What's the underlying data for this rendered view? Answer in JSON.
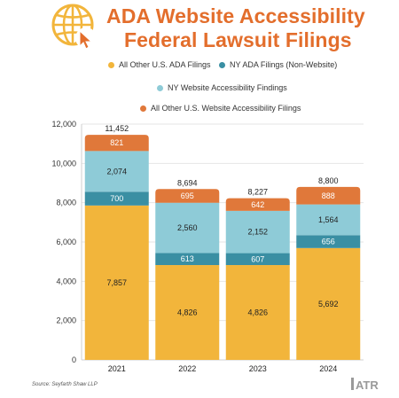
{
  "header": {
    "title_line1": "ADA Website Accessibility",
    "title_line2": "Federal Lawsuit Filings"
  },
  "colors": {
    "title": "#e36e2c",
    "all_other_ada": "#f2b53b",
    "ny_ada": "#3a8fa3",
    "ny_website": "#8ecbd7",
    "all_other_website": "#e0783a"
  },
  "icons": {
    "header_icon": "globe-cursor-icon",
    "logo": "atr-logo"
  },
  "source": "Source: Seyfarth Shaw LLP",
  "logo_text": "ATR",
  "chart_data": {
    "type": "bar",
    "stacked": true,
    "categories": [
      "2021",
      "2022",
      "2023",
      "2024"
    ],
    "series": [
      {
        "name": "All Other U.S. ADA Filings",
        "values": [
          7857,
          4826,
          4826,
          5692
        ]
      },
      {
        "name": "NY ADA Filings (Non-Website)",
        "values": [
          700,
          613,
          607,
          656
        ]
      },
      {
        "name": "NY Website Accessibility Findings",
        "values": [
          2074,
          2560,
          2152,
          1564
        ]
      },
      {
        "name": "All Other U.S. Website Accessibility Filings",
        "values": [
          821,
          695,
          642,
          888
        ]
      }
    ],
    "totals": [
      "11,452",
      "8,694",
      "8,227",
      "8,800"
    ],
    "value_labels": [
      [
        "7,857",
        "4,826",
        "4,826",
        "5,692"
      ],
      [
        "700",
        "613",
        "607",
        "656"
      ],
      [
        "2,074",
        "2,560",
        "2,152",
        "1,564"
      ],
      [
        "821",
        "695",
        "642",
        "888"
      ]
    ],
    "yticks": [
      0,
      2000,
      4000,
      6000,
      8000,
      10000,
      12000
    ],
    "ytick_labels": [
      "0",
      "2,000",
      "4,000",
      "6,000",
      "8,000",
      "10,000",
      "12,000"
    ],
    "ylim": [
      0,
      12000
    ],
    "grid": true,
    "legend": "top-center"
  }
}
